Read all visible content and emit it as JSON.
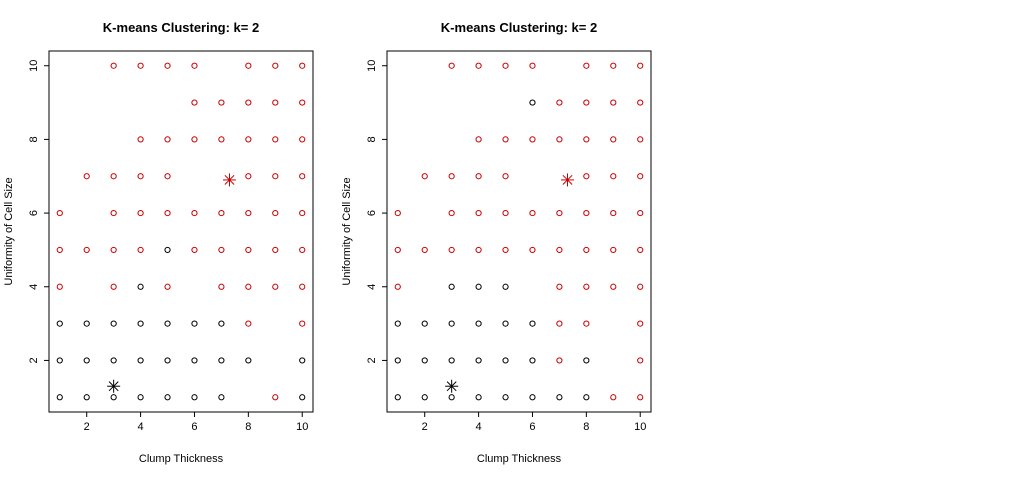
{
  "chart_data": [
    {
      "type": "scatter",
      "title": "K-means Clustering: k= 2",
      "xlabel": "Clump Thickness",
      "ylabel": "Uniformity of Cell Size",
      "xlim": [
        0.6,
        10.4
      ],
      "ylim": [
        0.6,
        10.4
      ],
      "xticks": [
        2,
        4,
        6,
        8,
        10
      ],
      "yticks": [
        2,
        4,
        6,
        8,
        10
      ],
      "grid": false,
      "legend": "none",
      "colors": {
        "cluster_1": "#000000",
        "cluster_2": "#cc0000"
      },
      "series": [
        {
          "cluster": 1,
          "marker": "circle",
          "color": "#000000",
          "points": [
            [
              1,
              1
            ],
            [
              2,
              1
            ],
            [
              3,
              1
            ],
            [
              4,
              1
            ],
            [
              5,
              1
            ],
            [
              6,
              1
            ],
            [
              7,
              1
            ],
            [
              10,
              1
            ],
            [
              1,
              2
            ],
            [
              2,
              2
            ],
            [
              3,
              2
            ],
            [
              4,
              2
            ],
            [
              5,
              2
            ],
            [
              6,
              2
            ],
            [
              7,
              2
            ],
            [
              8,
              2
            ],
            [
              10,
              2
            ],
            [
              1,
              3
            ],
            [
              2,
              3
            ],
            [
              3,
              3
            ],
            [
              4,
              3
            ],
            [
              5,
              3
            ],
            [
              6,
              3
            ],
            [
              7,
              3
            ],
            [
              4,
              4
            ],
            [
              5,
              5
            ]
          ]
        },
        {
          "cluster": 2,
          "marker": "circle",
          "color": "#cc0000",
          "points": [
            [
              9,
              1
            ],
            [
              8,
              3
            ],
            [
              10,
              3
            ],
            [
              1,
              4
            ],
            [
              3,
              4
            ],
            [
              5,
              4
            ],
            [
              7,
              4
            ],
            [
              8,
              4
            ],
            [
              9,
              4
            ],
            [
              10,
              4
            ],
            [
              1,
              5
            ],
            [
              2,
              5
            ],
            [
              3,
              5
            ],
            [
              4,
              5
            ],
            [
              6,
              5
            ],
            [
              7,
              5
            ],
            [
              8,
              5
            ],
            [
              9,
              5
            ],
            [
              10,
              5
            ],
            [
              1,
              6
            ],
            [
              3,
              6
            ],
            [
              4,
              6
            ],
            [
              5,
              6
            ],
            [
              6,
              6
            ],
            [
              7,
              6
            ],
            [
              8,
              6
            ],
            [
              9,
              6
            ],
            [
              10,
              6
            ],
            [
              2,
              7
            ],
            [
              3,
              7
            ],
            [
              4,
              7
            ],
            [
              5,
              7
            ],
            [
              8,
              7
            ],
            [
              9,
              7
            ],
            [
              10,
              7
            ],
            [
              4,
              8
            ],
            [
              5,
              8
            ],
            [
              6,
              8
            ],
            [
              7,
              8
            ],
            [
              8,
              8
            ],
            [
              9,
              8
            ],
            [
              10,
              8
            ],
            [
              6,
              9
            ],
            [
              7,
              9
            ],
            [
              8,
              9
            ],
            [
              9,
              9
            ],
            [
              10,
              9
            ],
            [
              3,
              10
            ],
            [
              4,
              10
            ],
            [
              5,
              10
            ],
            [
              6,
              10
            ],
            [
              8,
              10
            ],
            [
              9,
              10
            ],
            [
              10,
              10
            ]
          ]
        }
      ],
      "centers": [
        {
          "cluster": 1,
          "color": "#000000",
          "x": 3.0,
          "y": 1.3
        },
        {
          "cluster": 2,
          "color": "#cc0000",
          "x": 7.3,
          "y": 6.9
        }
      ]
    },
    {
      "type": "scatter",
      "title": "K-means Clustering: k= 2",
      "xlabel": "Clump Thickness",
      "ylabel": "Uniformity of Cell Size",
      "xlim": [
        0.6,
        10.4
      ],
      "ylim": [
        0.6,
        10.4
      ],
      "xticks": [
        2,
        4,
        6,
        8,
        10
      ],
      "yticks": [
        2,
        4,
        6,
        8,
        10
      ],
      "grid": false,
      "legend": "none",
      "colors": {
        "cluster_1": "#000000",
        "cluster_2": "#cc0000"
      },
      "series": [
        {
          "cluster": 1,
          "marker": "circle",
          "color": "#000000",
          "points": [
            [
              1,
              1
            ],
            [
              2,
              1
            ],
            [
              3,
              1
            ],
            [
              4,
              1
            ],
            [
              5,
              1
            ],
            [
              6,
              1
            ],
            [
              7,
              1
            ],
            [
              8,
              1
            ],
            [
              1,
              2
            ],
            [
              2,
              2
            ],
            [
              3,
              2
            ],
            [
              4,
              2
            ],
            [
              5,
              2
            ],
            [
              6,
              2
            ],
            [
              8,
              2
            ],
            [
              1,
              3
            ],
            [
              2,
              3
            ],
            [
              3,
              3
            ],
            [
              4,
              3
            ],
            [
              5,
              3
            ],
            [
              6,
              3
            ],
            [
              3,
              4
            ],
            [
              4,
              4
            ],
            [
              5,
              4
            ],
            [
              6,
              9
            ]
          ]
        },
        {
          "cluster": 2,
          "marker": "circle",
          "color": "#cc0000",
          "points": [
            [
              9,
              1
            ],
            [
              10,
              1
            ],
            [
              7,
              2
            ],
            [
              10,
              2
            ],
            [
              7,
              3
            ],
            [
              8,
              3
            ],
            [
              10,
              3
            ],
            [
              1,
              4
            ],
            [
              7,
              4
            ],
            [
              8,
              4
            ],
            [
              9,
              4
            ],
            [
              10,
              4
            ],
            [
              1,
              5
            ],
            [
              2,
              5
            ],
            [
              3,
              5
            ],
            [
              4,
              5
            ],
            [
              5,
              5
            ],
            [
              6,
              5
            ],
            [
              7,
              5
            ],
            [
              8,
              5
            ],
            [
              9,
              5
            ],
            [
              10,
              5
            ],
            [
              1,
              6
            ],
            [
              3,
              6
            ],
            [
              4,
              6
            ],
            [
              5,
              6
            ],
            [
              6,
              6
            ],
            [
              7,
              6
            ],
            [
              8,
              6
            ],
            [
              9,
              6
            ],
            [
              10,
              6
            ],
            [
              2,
              7
            ],
            [
              3,
              7
            ],
            [
              4,
              7
            ],
            [
              5,
              7
            ],
            [
              8,
              7
            ],
            [
              9,
              7
            ],
            [
              10,
              7
            ],
            [
              4,
              8
            ],
            [
              5,
              8
            ],
            [
              6,
              8
            ],
            [
              7,
              8
            ],
            [
              8,
              8
            ],
            [
              9,
              8
            ],
            [
              10,
              8
            ],
            [
              7,
              9
            ],
            [
              8,
              9
            ],
            [
              9,
              9
            ],
            [
              10,
              9
            ],
            [
              3,
              10
            ],
            [
              4,
              10
            ],
            [
              5,
              10
            ],
            [
              6,
              10
            ],
            [
              8,
              10
            ],
            [
              9,
              10
            ],
            [
              10,
              10
            ]
          ]
        }
      ],
      "centers": [
        {
          "cluster": 1,
          "color": "#000000",
          "x": 3.0,
          "y": 1.3
        },
        {
          "cluster": 2,
          "color": "#cc0000",
          "x": 7.3,
          "y": 6.9
        }
      ]
    }
  ]
}
